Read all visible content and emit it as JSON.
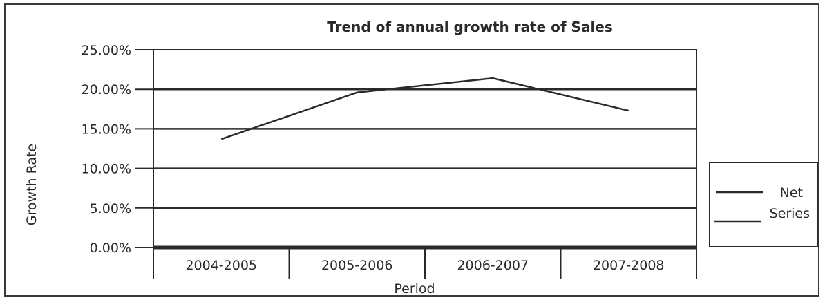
{
  "chart_data": {
    "type": "line",
    "title": "Trend of annual growth rate of Sales",
    "xlabel": "Period",
    "ylabel": "Growth Rate",
    "categories": [
      "2004-2005",
      "2005-2006",
      "2006-2007",
      "2007-2008"
    ],
    "series": [
      {
        "name": "Net Series",
        "values": [
          13.7,
          19.6,
          21.4,
          17.3
        ]
      }
    ],
    "y_ticks": [
      "0.00%",
      "5.00%",
      "10.00%",
      "15.00%",
      "20.00%",
      "25.00%"
    ],
    "ylim": [
      0,
      25
    ],
    "grid": true,
    "legend_position": "right",
    "legend_lines": [
      "Net",
      "Series"
    ],
    "colors": {
      "line": "#2a2a2a",
      "grid": "#2a2a2a"
    }
  }
}
